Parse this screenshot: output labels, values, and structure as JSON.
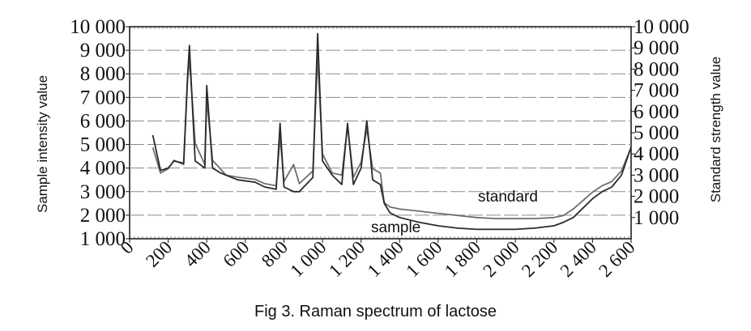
{
  "caption": "Fig 3. Raman spectrum of lactose",
  "chart_data": {
    "type": "line",
    "title": "",
    "xlabel": "",
    "ylabel_left": "Sample intensity value",
    "ylabel_right": "Standard strength value",
    "xlim": [
      0,
      2600
    ],
    "ylim_left": [
      1000,
      10000
    ],
    "ylim_right": [
      0,
      10000
    ],
    "x_ticks": [
      "0",
      "200",
      "400",
      "600",
      "800",
      "1 000",
      "1 200",
      "1 400",
      "1 600",
      "1 800",
      "2 000",
      "2 200",
      "2 400",
      "2 600"
    ],
    "y_left_ticks": [
      "1 000",
      "2 000",
      "3 000",
      "4 000",
      "5 000",
      "6 000",
      "7 000",
      "8 000",
      "9 000",
      "10 000"
    ],
    "y_right_ticks": [
      "1 000",
      "2 000",
      "3 000",
      "4 000",
      "5 000",
      "6 000",
      "7 000",
      "8 000",
      "9 000",
      "10 000"
    ],
    "grid": true,
    "annotations": [
      "standard",
      "sample"
    ],
    "series": [
      {
        "name": "standard",
        "axis": "right",
        "color": "#6f6f6f",
        "x": [
          120,
          160,
          200,
          230,
          280,
          300,
          310,
          340,
          390,
          400,
          430,
          470,
          500,
          560,
          650,
          700,
          760,
          780,
          800,
          850,
          880,
          950,
          975,
          1000,
          1050,
          1100,
          1130,
          1160,
          1200,
          1230,
          1260,
          1300,
          1320,
          1350,
          1400,
          1500,
          1600,
          1700,
          1800,
          1900,
          2000,
          2100,
          2200,
          2250,
          2300,
          2350,
          2400,
          2450,
          2500,
          2550,
          2600
        ],
        "y": [
          4300,
          3100,
          3300,
          3700,
          3500,
          7400,
          8500,
          4500,
          3500,
          6600,
          3700,
          3300,
          3000,
          2900,
          2800,
          2600,
          2500,
          4800,
          2700,
          3500,
          2600,
          3200,
          8600,
          4000,
          3100,
          3000,
          5300,
          2900,
          3600,
          5200,
          3300,
          3100,
          1700,
          1500,
          1400,
          1300,
          1200,
          1100,
          1000,
          950,
          950,
          950,
          1000,
          1100,
          1400,
          1800,
          2200,
          2500,
          2700,
          3200,
          4300
        ]
      },
      {
        "name": "sample",
        "axis": "left",
        "color": "#2a2a2a",
        "x": [
          120,
          160,
          200,
          230,
          280,
          300,
          310,
          340,
          390,
          400,
          430,
          470,
          500,
          560,
          650,
          700,
          760,
          780,
          800,
          850,
          880,
          950,
          975,
          1000,
          1050,
          1100,
          1130,
          1160,
          1200,
          1230,
          1260,
          1300,
          1320,
          1350,
          1400,
          1500,
          1600,
          1700,
          1800,
          1900,
          2000,
          2100,
          2200,
          2250,
          2300,
          2350,
          2400,
          2450,
          2500,
          2550,
          2600
        ],
        "y": [
          5400,
          3900,
          4000,
          4300,
          4200,
          7800,
          9200,
          4300,
          4000,
          7500,
          4000,
          3800,
          3700,
          3500,
          3400,
          3200,
          3100,
          5900,
          3200,
          3000,
          3000,
          3600,
          9700,
          4300,
          3700,
          3300,
          5900,
          3300,
          4000,
          6000,
          3500,
          3300,
          2500,
          2100,
          1900,
          1700,
          1550,
          1450,
          1400,
          1400,
          1400,
          1450,
          1550,
          1700,
          1900,
          2300,
          2700,
          3000,
          3200,
          3700,
          4900
        ]
      }
    ]
  }
}
